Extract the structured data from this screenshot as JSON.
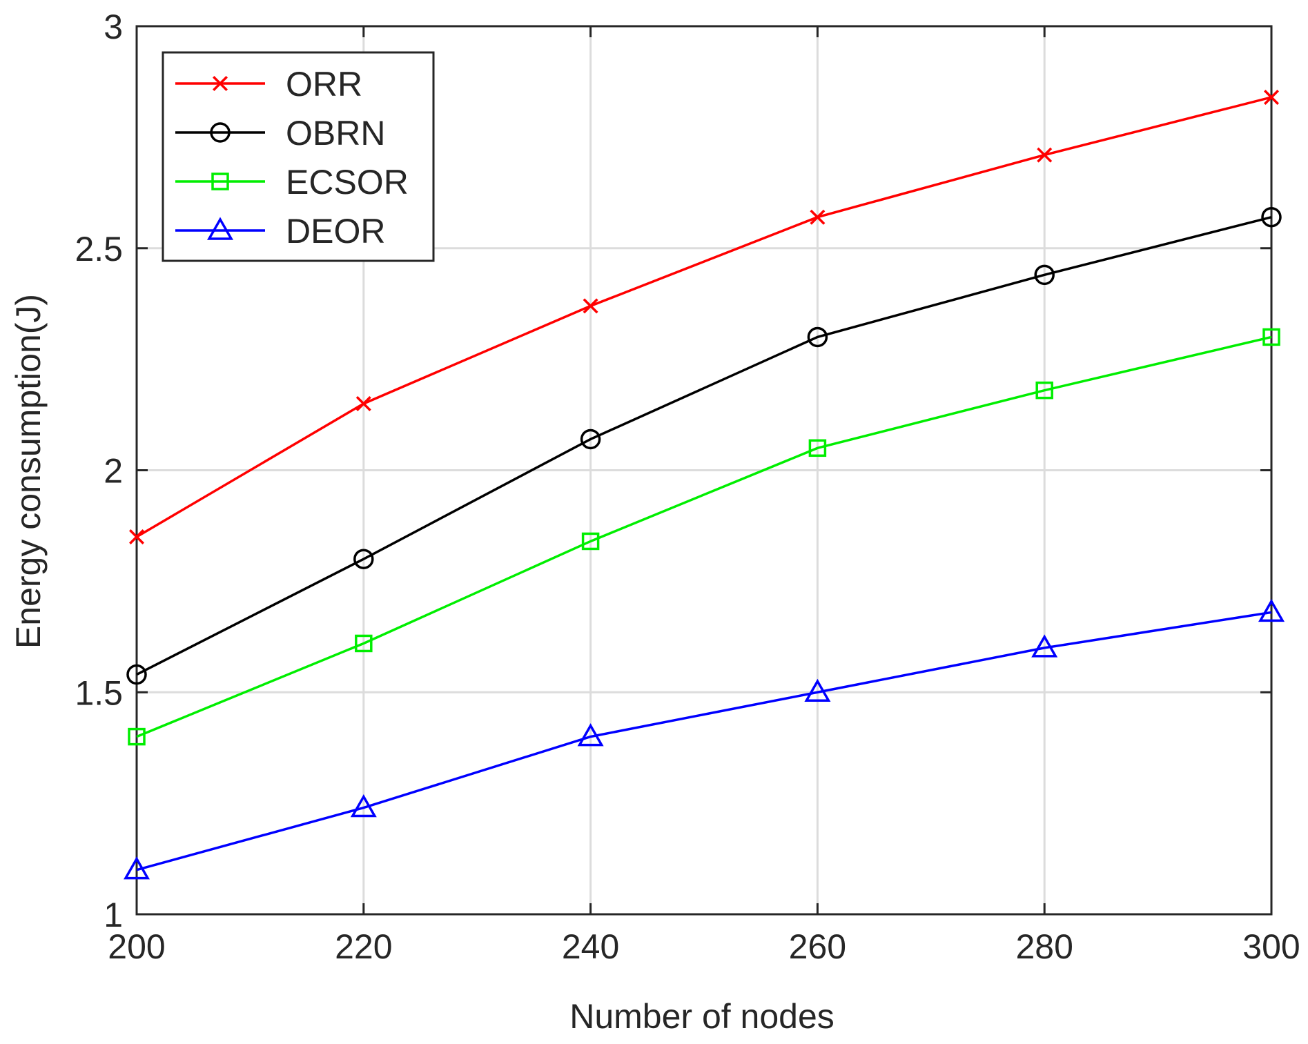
{
  "chart_data": {
    "type": "line",
    "title": "",
    "xlabel": "Number of nodes",
    "ylabel": "Energy consumption(J)",
    "x": [
      200,
      220,
      240,
      260,
      280,
      300
    ],
    "xlim": [
      200,
      300
    ],
    "ylim": [
      1,
      3
    ],
    "xticks": [
      200,
      220,
      240,
      260,
      280,
      300
    ],
    "yticks": [
      1,
      1.5,
      2,
      2.5,
      3
    ],
    "xtick_labels": [
      "200",
      "220",
      "240",
      "260",
      "280",
      "300"
    ],
    "ytick_labels": [
      "1",
      "1.5",
      "2",
      "2.5",
      "3"
    ],
    "grid": true,
    "legend_position": "top-left",
    "series": [
      {
        "name": "ORR",
        "color": "#ff0000",
        "marker": "x",
        "values": [
          1.85,
          2.15,
          2.37,
          2.57,
          2.71,
          2.84
        ]
      },
      {
        "name": "OBRN",
        "color": "#000000",
        "marker": "circle",
        "values": [
          1.54,
          1.8,
          2.07,
          2.3,
          2.44,
          2.57
        ]
      },
      {
        "name": "ECSOR",
        "color": "#00ee00",
        "marker": "square",
        "values": [
          1.4,
          1.61,
          1.84,
          2.05,
          2.18,
          2.3
        ]
      },
      {
        "name": "DEOR",
        "color": "#0000ff",
        "marker": "triangle",
        "values": [
          1.1,
          1.24,
          1.4,
          1.5,
          1.6,
          1.68
        ]
      }
    ]
  }
}
